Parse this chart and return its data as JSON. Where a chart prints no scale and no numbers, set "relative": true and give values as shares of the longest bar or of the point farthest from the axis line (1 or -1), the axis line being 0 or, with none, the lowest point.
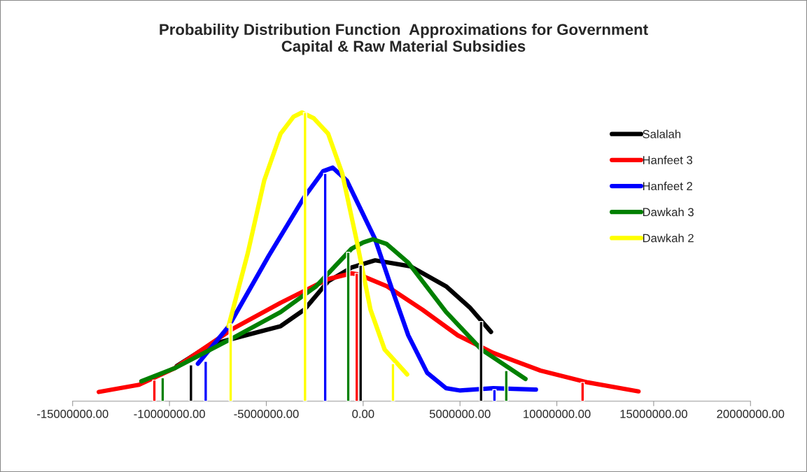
{
  "chart_data": {
    "type": "line",
    "title": "Probability Distribution Function  Approximations for Government\nCapital & Raw Material Subsidies",
    "relative": true,
    "legend": "right",
    "grid": false,
    "marker": "none",
    "line_style": "solid",
    "xlim": [
      -15000000,
      20000000
    ],
    "xticks": [
      {
        "value": -15000000,
        "label": "-15000000.00"
      },
      {
        "value": -10000000,
        "label": "-10000000.00"
      },
      {
        "value": -5000000,
        "label": "-5000000.00"
      },
      {
        "value": 0,
        "label": "0.00"
      },
      {
        "value": 5000000,
        "label": "5000000.00"
      },
      {
        "value": 10000000,
        "label": "10000000.00"
      },
      {
        "value": 15000000,
        "label": "15000000.00"
      },
      {
        "value": 20000000,
        "label": "20000000.00"
      }
    ],
    "series": [
      {
        "name": "Salalah",
        "color": "#000000",
        "x": [
          -9620000,
          -7910000,
          -6090000,
          -4260000,
          -3040000,
          -1810000,
          -600000,
          620000,
          2450000,
          4280000,
          5500000,
          6600000
        ],
        "values": [
          0.122,
          0.195,
          0.228,
          0.26,
          0.317,
          0.415,
          0.463,
          0.488,
          0.467,
          0.398,
          0.325,
          0.24
        ]
      },
      {
        "name": "Hanfeet 3",
        "color": "#ff0000",
        "x": [
          -13650000,
          -11570000,
          -9740000,
          -6700000,
          -4260000,
          -1810000,
          -600000,
          -230000,
          1230000,
          3060000,
          4890000,
          6720000,
          9160000,
          11600000,
          14220000
        ],
        "values": [
          0.032,
          0.057,
          0.114,
          0.252,
          0.341,
          0.423,
          0.443,
          0.439,
          0.398,
          0.317,
          0.228,
          0.167,
          0.106,
          0.065,
          0.034
        ]
      },
      {
        "name": "Hanfeet 2",
        "color": "#0000ff",
        "x": [
          -8530000,
          -6940000,
          -4870000,
          -3040000,
          -2060000,
          -1570000,
          -840000,
          620000,
          1480000,
          2330000,
          3310000,
          4280000,
          5010000,
          6720000,
          8920000
        ],
        "values": [
          0.13,
          0.26,
          0.504,
          0.707,
          0.797,
          0.809,
          0.764,
          0.561,
          0.39,
          0.228,
          0.098,
          0.045,
          0.037,
          0.045,
          0.04
        ]
      },
      {
        "name": "Dawkah 3",
        "color": "#008000",
        "x": [
          -11450000,
          -9740000,
          -6700000,
          -4260000,
          -2430000,
          -600000,
          0,
          500000,
          1200000,
          2330000,
          4280000,
          6110000,
          8380000
        ],
        "values": [
          0.069,
          0.114,
          0.22,
          0.309,
          0.398,
          0.528,
          0.55,
          0.561,
          0.545,
          0.48,
          0.309,
          0.179,
          0.077
        ]
      },
      {
        "name": "Dawkah 2",
        "color": "#ffff00",
        "x": [
          -6950000,
          -5960000,
          -5110000,
          -4260000,
          -3600000,
          -3160000,
          -2550000,
          -1810000,
          -1080000,
          -350000,
          380000,
          1110000,
          2270000
        ],
        "values": [
          0.26,
          0.512,
          0.764,
          0.927,
          0.985,
          1.0,
          0.98,
          0.927,
          0.789,
          0.561,
          0.317,
          0.179,
          0.093
        ]
      },
      {
        "type": "bar",
        "color": "#000000",
        "x": [
          -8890000,
          -130000,
          6090000
        ],
        "values": [
          0.126,
          0.471,
          0.276
        ]
      },
      {
        "type": "bar",
        "color": "#ff0000",
        "x": [
          -10780000,
          -330000,
          11330000
        ],
        "values": [
          0.073,
          0.443,
          0.065
        ]
      },
      {
        "type": "bar",
        "color": "#0000ff",
        "x": [
          -8130000,
          -1960000,
          6780000
        ],
        "values": [
          0.138,
          0.789,
          0.04
        ]
      },
      {
        "type": "bar",
        "color": "#008000",
        "x": [
          -10350000,
          -770000,
          7390000
        ],
        "values": [
          0.081,
          0.516,
          0.106
        ]
      },
      {
        "type": "bar",
        "color": "#ffff00",
        "x": [
          -6840000,
          -3000000,
          1540000
        ],
        "values": [
          0.268,
          1.0,
          0.13
        ]
      }
    ]
  }
}
